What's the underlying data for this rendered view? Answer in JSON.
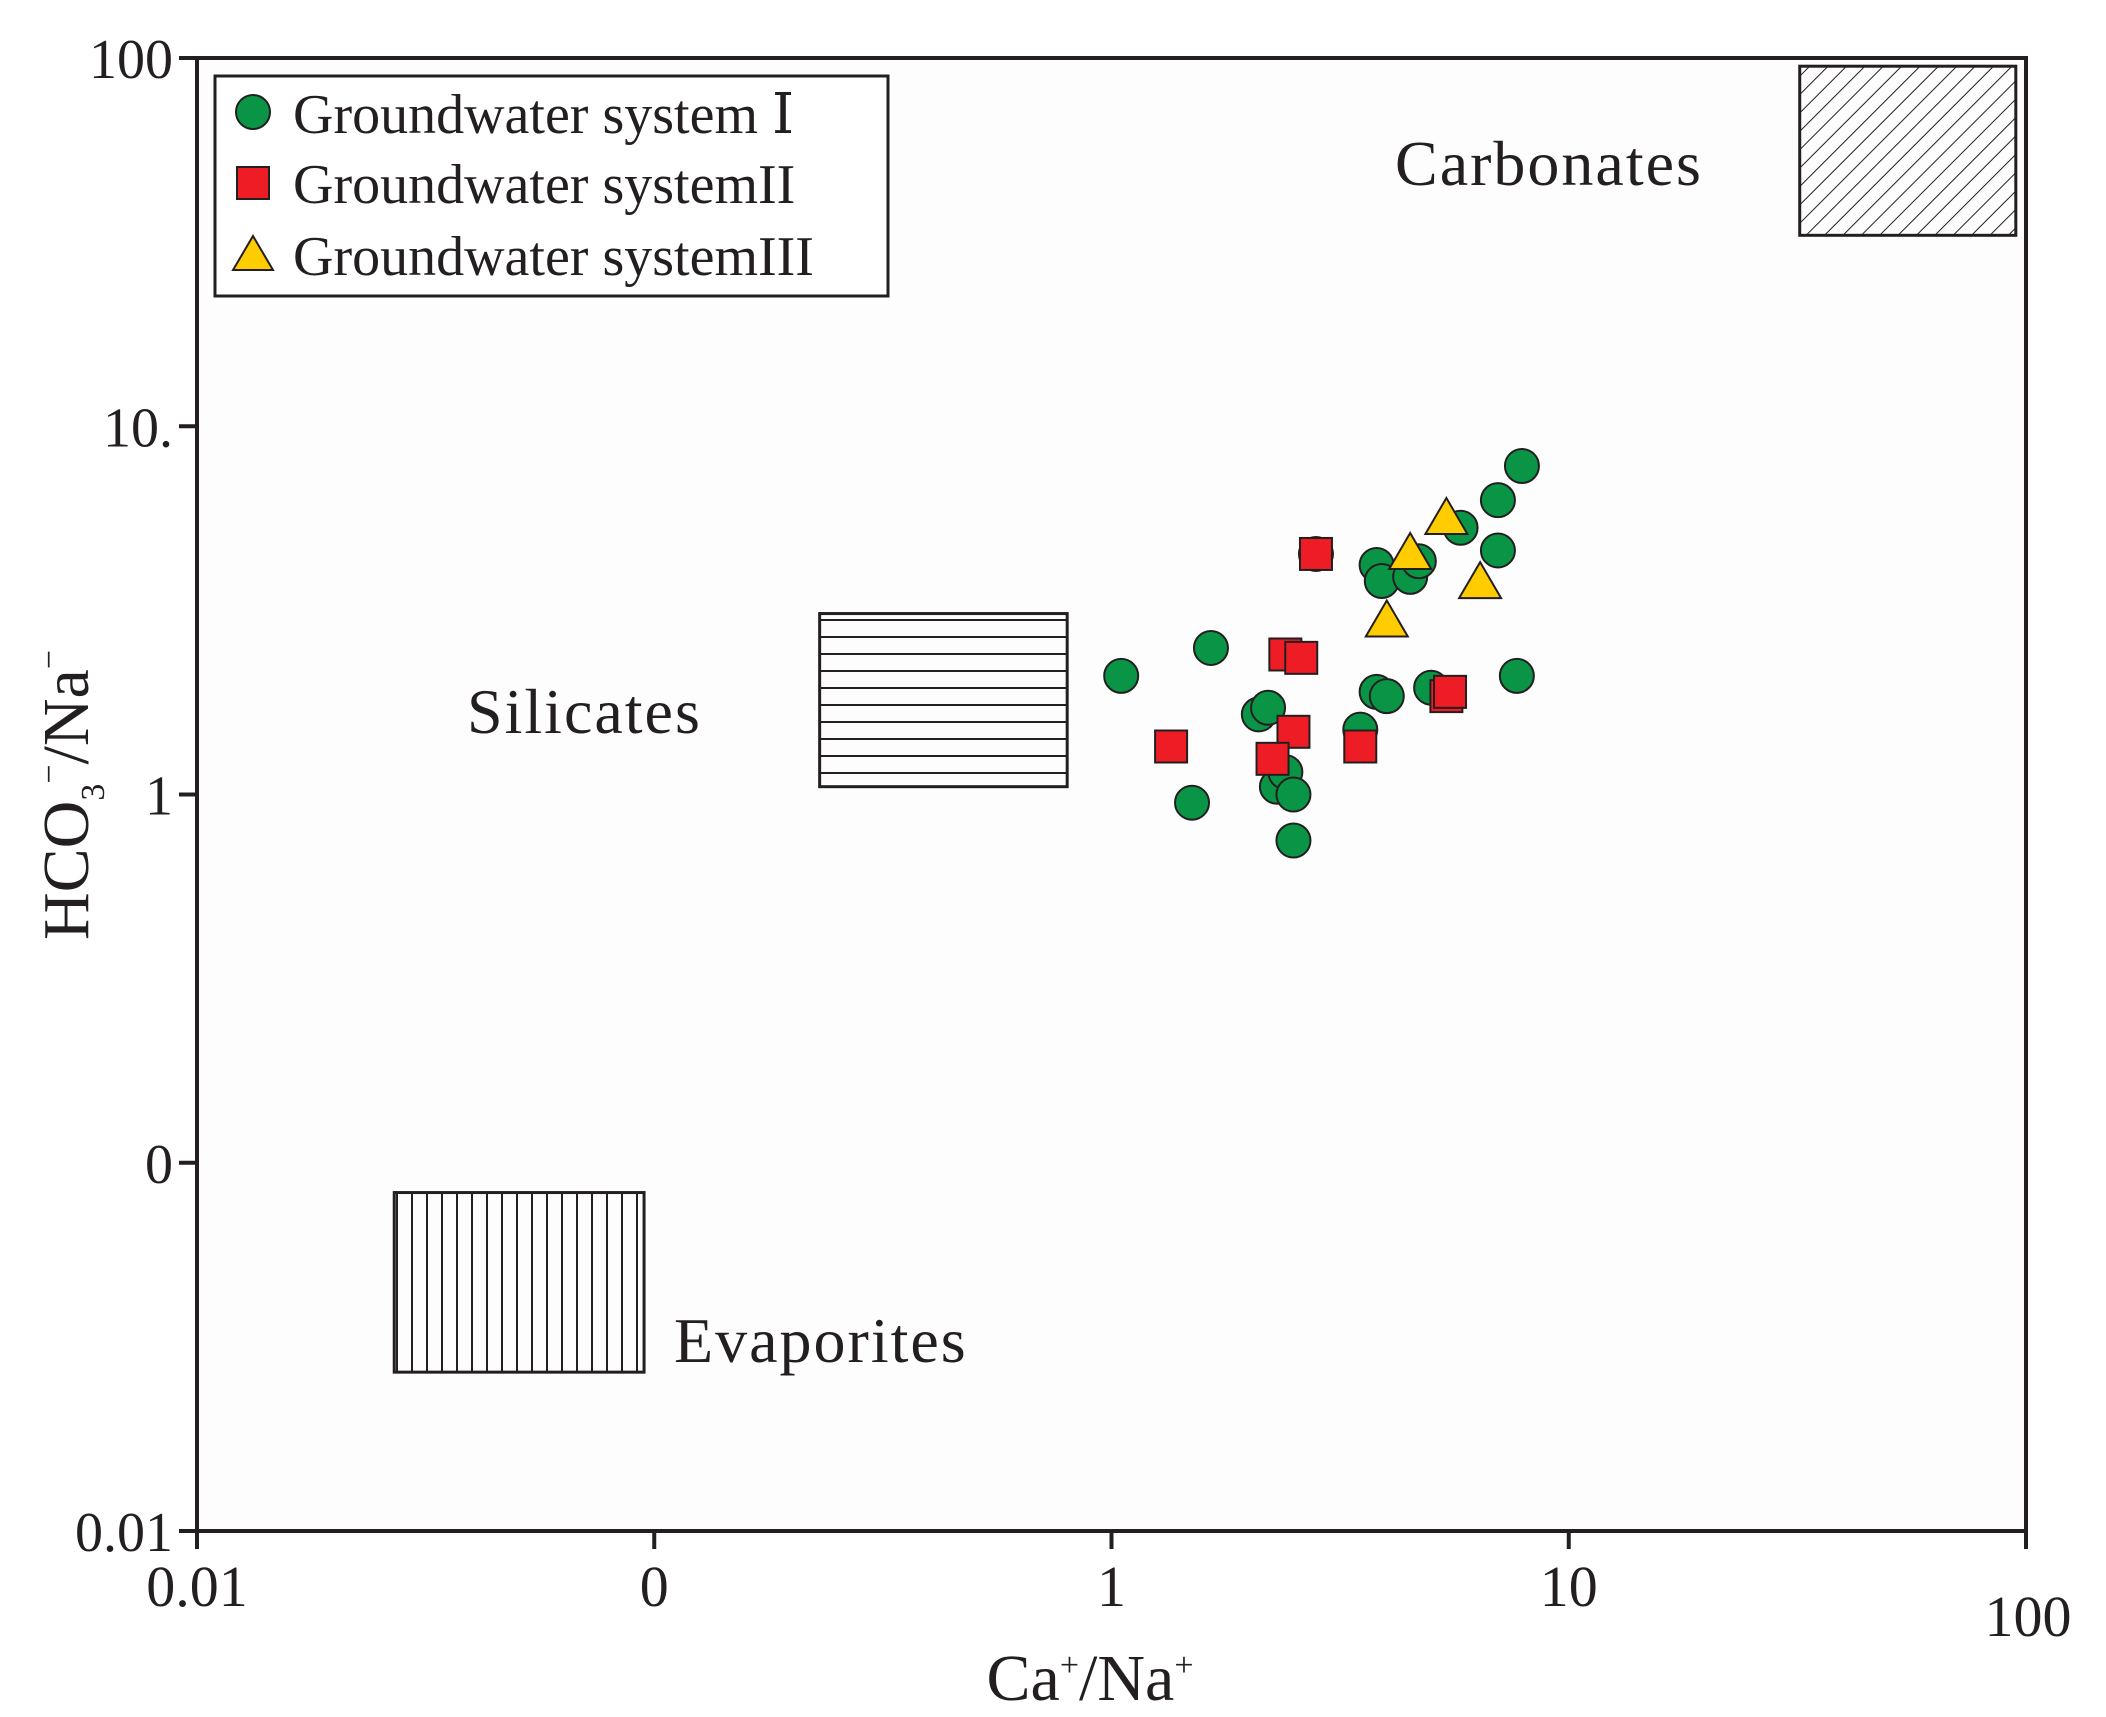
{
  "chart_data": {
    "type": "scatter",
    "scale": {
      "x": "log",
      "y": "log"
    },
    "xlim": [
      0.01,
      100
    ],
    "ylim": [
      0.01,
      100
    ],
    "xlabel": {
      "base": "Ca",
      "sup": "+",
      "sep": "/",
      "base2": "Na",
      "sup2": "+"
    },
    "ylabel": {
      "part1": "HCO",
      "sub": "3",
      "sup1": "−",
      "sep": "/",
      "part2": "Na",
      "sup2": "−"
    },
    "x_ticks": [
      {
        "value": 0.01,
        "label": "0.01"
      },
      {
        "value": 0.1,
        "label": "0"
      },
      {
        "value": 1,
        "label": "1"
      },
      {
        "value": 10,
        "label": "10"
      },
      {
        "value": 100,
        "label": "100"
      }
    ],
    "y_ticks": [
      {
        "value": 0.01,
        "label": "0.01"
      },
      {
        "value": 0.1,
        "label": "0"
      },
      {
        "value": 1,
        "label": "1"
      },
      {
        "value": 10,
        "label": "10."
      },
      {
        "value": 100,
        "label": "100"
      }
    ],
    "legend": [
      {
        "label": "Groundwater system Ⅰ",
        "marker": "circle",
        "color": "#0a9446"
      },
      {
        "label": "Groundwater systemII",
        "marker": "square",
        "color": "#ee1c25"
      },
      {
        "label": "Groundwater systemIII",
        "marker": "triangle",
        "color": "#ffcc00"
      }
    ],
    "regions": [
      {
        "name": "Carbonates",
        "x": [
          32,
          95
        ],
        "y": [
          33,
          95
        ],
        "pattern": "diagonal"
      },
      {
        "name": "Silicates",
        "x": [
          0.23,
          0.8
        ],
        "y": [
          1.05,
          3.1
        ],
        "pattern": "horizontal"
      },
      {
        "name": "Evaporites",
        "x": [
          0.027,
          0.095
        ],
        "y": [
          0.027,
          0.083
        ],
        "pattern": "vertical"
      }
    ],
    "series": [
      {
        "name": "Groundwater system Ⅰ",
        "points": [
          [
            1.05,
            2.1
          ],
          [
            1.65,
            2.5
          ],
          [
            1.5,
            0.95
          ],
          [
            2.1,
            1.65
          ],
          [
            2.2,
            1.72
          ],
          [
            2.3,
            1.05
          ],
          [
            2.4,
            1.15
          ],
          [
            2.5,
            1.0
          ],
          [
            2.5,
            0.75
          ],
          [
            2.8,
            4.5
          ],
          [
            3.5,
            1.5
          ],
          [
            3.8,
            4.2
          ],
          [
            3.9,
            3.8
          ],
          [
            3.8,
            1.9
          ],
          [
            4.0,
            1.85
          ],
          [
            4.5,
            3.9
          ],
          [
            4.7,
            4.3
          ],
          [
            5.0,
            1.95
          ],
          [
            5.8,
            5.3
          ],
          [
            7.0,
            6.3
          ],
          [
            7.0,
            4.6
          ],
          [
            7.7,
            2.1
          ],
          [
            7.9,
            7.8
          ]
        ]
      },
      {
        "name": "Groundwater systemII",
        "points": [
          [
            1.35,
            1.35
          ],
          [
            2.4,
            2.4
          ],
          [
            2.6,
            2.35
          ],
          [
            2.5,
            1.48
          ],
          [
            2.25,
            1.25
          ],
          [
            3.5,
            1.35
          ],
          [
            5.4,
            1.85
          ],
          [
            5.5,
            1.9
          ],
          [
            2.8,
            4.5
          ]
        ]
      },
      {
        "name": "Groundwater systemIII",
        "points": [
          [
            4.0,
            2.95
          ],
          [
            4.5,
            4.5
          ],
          [
            5.4,
            5.6
          ],
          [
            6.4,
            3.75
          ]
        ]
      }
    ]
  }
}
